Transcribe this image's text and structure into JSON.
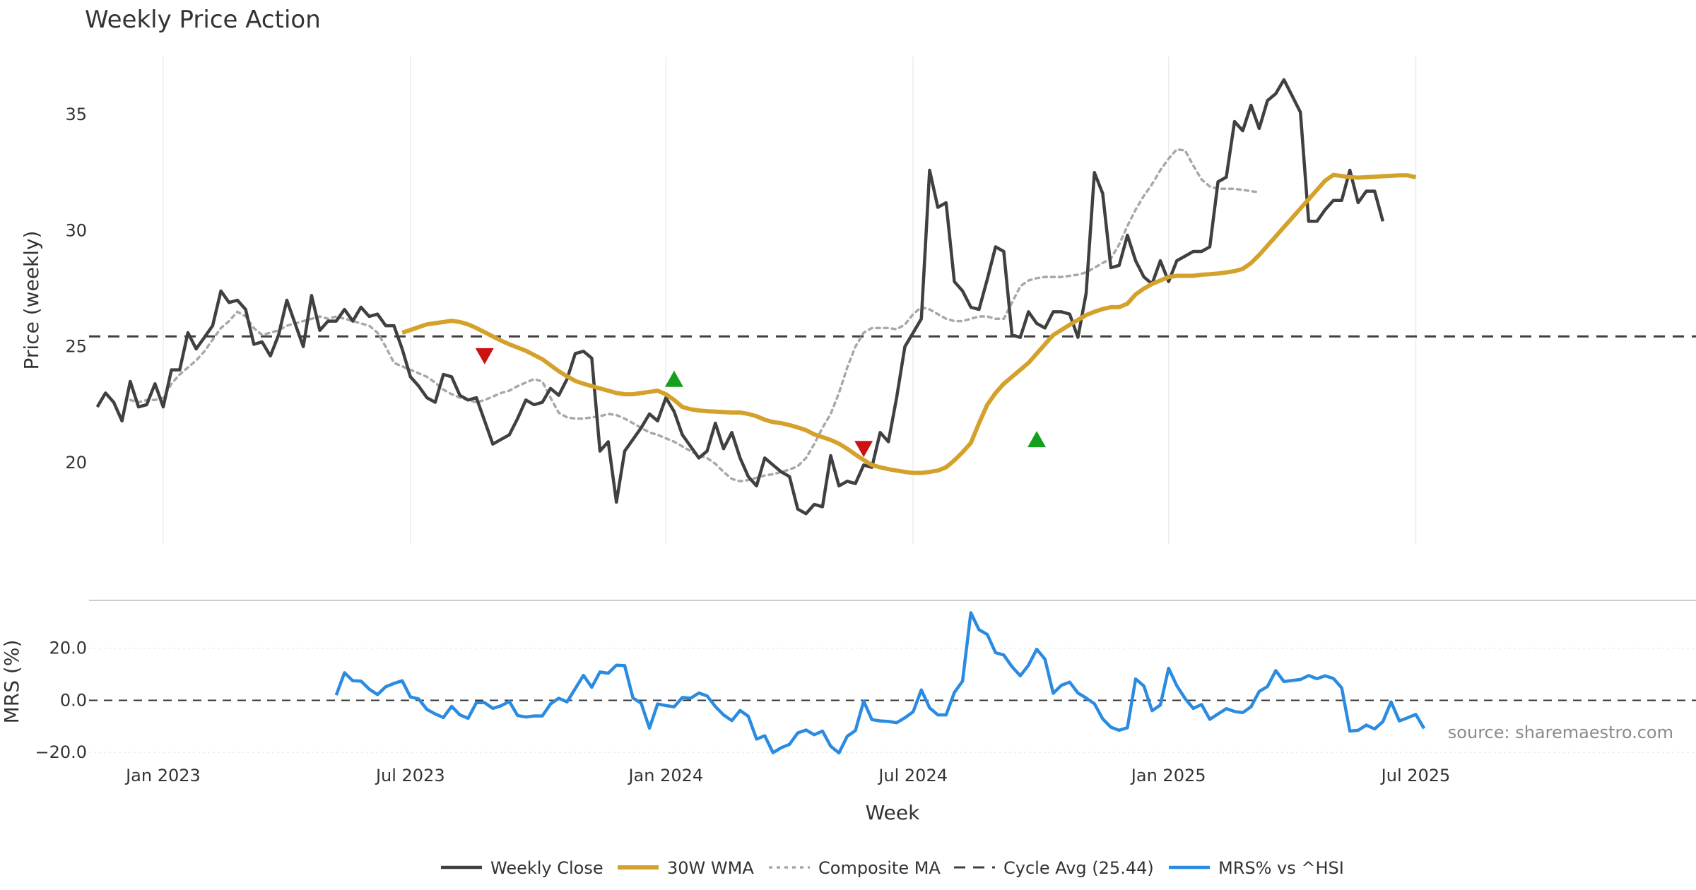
{
  "colors": {
    "close": "#404040",
    "wma": "#d4a12a",
    "composite": "#a8a8a8",
    "cycle": "#404040",
    "mrs": "#2b8be0",
    "up_marker": "#14a01e",
    "down_marker": "#cc1111",
    "grid": "#ececec"
  },
  "chart_data": {
    "type": "line",
    "title": "Weekly Price Action",
    "ylabel": "Price (weekly)",
    "xlabel": "Week",
    "source": "source: sharemaestro.com",
    "ylim": [
      16.5,
      37.5
    ],
    "yticks": [
      20,
      25,
      30,
      35
    ],
    "x_range": [
      -9,
      186
    ],
    "x_tick_positions": [
      0,
      30,
      61,
      91,
      122,
      152
    ],
    "x_tick_labels": [
      "Jan 2023",
      "Jul 2023",
      "Jan 2024",
      "Jul 2024",
      "Jan 2025",
      "Jul 2025"
    ],
    "cycle_avg": 25.44,
    "series": [
      {
        "name": "Weekly Close",
        "start": -8,
        "values": [
          22.4,
          23.0,
          22.6,
          21.8,
          23.5,
          22.4,
          22.5,
          23.4,
          22.4,
          24.0,
          24.0,
          25.6,
          24.9,
          25.4,
          25.9,
          27.4,
          26.9,
          27.0,
          26.6,
          25.1,
          25.2,
          24.6,
          25.5,
          27.0,
          26.0,
          25.0,
          27.2,
          25.7,
          26.1,
          26.1,
          26.6,
          26.1,
          26.7,
          26.3,
          26.4,
          25.9,
          25.9,
          24.9,
          23.7,
          23.3,
          22.8,
          22.6,
          23.8,
          23.7,
          22.9,
          22.7,
          22.8,
          21.8,
          20.8,
          21.0,
          21.2,
          21.9,
          22.7,
          22.5,
          22.6,
          23.2,
          22.9,
          23.6,
          24.7,
          24.8,
          24.5,
          20.5,
          20.9,
          18.3,
          20.5,
          21.0,
          21.5,
          22.1,
          21.8,
          22.8,
          22.2,
          21.2,
          20.7,
          20.2,
          20.5,
          21.7,
          20.6,
          21.3,
          20.2,
          19.4,
          19.0,
          20.2,
          19.9,
          19.6,
          19.4,
          18.0,
          17.8,
          18.2,
          18.1,
          20.3,
          19.0,
          19.2,
          19.1,
          19.9,
          19.8,
          21.3,
          20.9,
          22.8,
          25.0,
          25.6,
          26.2,
          32.6,
          31.0,
          31.2,
          27.8,
          27.4,
          26.7,
          26.6,
          27.9,
          29.3,
          29.1,
          25.5,
          25.4,
          26.5,
          26.0,
          25.8,
          26.5,
          26.5,
          26.4,
          25.4,
          27.3,
          32.5,
          31.6,
          28.4,
          28.5,
          29.8,
          28.7,
          28.0,
          27.7,
          28.7,
          27.8,
          28.7,
          28.9,
          29.1,
          29.1,
          29.3,
          32.1,
          32.3,
          34.7,
          34.3,
          35.4,
          34.4,
          35.6,
          35.9,
          36.5,
          35.8,
          35.1,
          30.4,
          30.4,
          30.9,
          31.3,
          31.3,
          32.6,
          31.2,
          31.7,
          31.7,
          30.4
        ]
      },
      {
        "name": "30W WMA",
        "start": 29,
        "values": [
          25.6,
          25.72,
          25.84,
          25.96,
          26.01,
          26.06,
          26.11,
          26.06,
          25.96,
          25.8,
          25.62,
          25.44,
          25.26,
          25.1,
          24.96,
          24.82,
          24.64,
          24.46,
          24.2,
          23.94,
          23.72,
          23.52,
          23.4,
          23.3,
          23.2,
          23.1,
          23.0,
          22.95,
          22.95,
          23.0,
          23.05,
          23.1,
          22.95,
          22.7,
          22.4,
          22.3,
          22.25,
          22.22,
          22.2,
          22.18,
          22.16,
          22.16,
          22.1,
          22.0,
          21.85,
          21.75,
          21.7,
          21.62,
          21.52,
          21.4,
          21.22,
          21.1,
          20.98,
          20.82,
          20.6,
          20.35,
          20.12,
          19.9,
          19.8,
          19.72,
          19.66,
          19.6,
          19.56,
          19.56,
          19.6,
          19.66,
          19.8,
          20.1,
          20.45,
          20.85,
          21.7,
          22.5,
          23.0,
          23.4,
          23.7,
          24.0,
          24.3,
          24.7,
          25.1,
          25.5,
          25.72,
          25.94,
          26.15,
          26.36,
          26.5,
          26.62,
          26.7,
          26.7,
          26.85,
          27.25,
          27.5,
          27.7,
          27.85,
          28.0,
          28.05,
          28.05,
          28.05,
          28.1,
          28.12,
          28.15,
          28.2,
          28.25,
          28.35,
          28.6,
          28.95,
          29.35,
          29.75,
          30.15,
          30.55,
          30.95,
          31.35,
          31.75,
          32.15,
          32.4,
          32.35,
          32.3,
          32.28,
          32.3,
          32.32,
          32.34,
          32.36,
          32.38,
          32.38,
          32.3
        ]
      },
      {
        "name": "Composite MA",
        "start": -4,
        "values": [
          22.7,
          22.6,
          22.7,
          22.7,
          22.8,
          23.4,
          23.8,
          24.1,
          24.4,
          24.8,
          25.3,
          25.8,
          26.1,
          26.5,
          26.3,
          25.8,
          25.5,
          25.6,
          25.7,
          25.9,
          26.0,
          26.1,
          26.2,
          26.3,
          26.2,
          26.3,
          26.2,
          26.1,
          26.0,
          25.9,
          25.6,
          25.0,
          24.3,
          24.15,
          24.0,
          23.85,
          23.7,
          23.45,
          23.15,
          22.95,
          22.8,
          22.7,
          22.6,
          22.7,
          22.85,
          23.0,
          23.1,
          23.3,
          23.45,
          23.6,
          23.5,
          22.8,
          22.15,
          21.95,
          21.9,
          21.9,
          21.95,
          22.0,
          22.1,
          22.05,
          21.9,
          21.7,
          21.5,
          21.3,
          21.2,
          21.05,
          20.9,
          20.7,
          20.5,
          20.3,
          20.2,
          19.95,
          19.6,
          19.3,
          19.2,
          19.25,
          19.35,
          19.45,
          19.5,
          19.6,
          19.7,
          19.85,
          20.2,
          20.8,
          21.5,
          22.1,
          23.0,
          24.1,
          25.0,
          25.6,
          25.8,
          25.8,
          25.8,
          25.75,
          25.95,
          26.4,
          26.7,
          26.6,
          26.4,
          26.2,
          26.1,
          26.1,
          26.2,
          26.3,
          26.3,
          26.2,
          26.2,
          26.9,
          27.6,
          27.85,
          27.95,
          28.0,
          28.0,
          28.0,
          28.05,
          28.1,
          28.2,
          28.4,
          28.6,
          28.8,
          29.4,
          30.2,
          30.9,
          31.5,
          32.0,
          32.6,
          33.1,
          33.5,
          33.45,
          32.8,
          32.2,
          31.9,
          31.8,
          31.8,
          31.8,
          31.75,
          31.7,
          31.65
        ]
      },
      {
        "name": "MRS% vs ^HSI",
        "start": 21,
        "values": [
          2,
          10.6,
          7.5,
          7.4,
          4.3,
          2.2,
          5.2,
          6.5,
          7.5,
          1.3,
          0.5,
          -3.5,
          -5.2,
          -6.6,
          -2.3,
          -5.6,
          -6.9,
          -0.9,
          -0.9,
          -3.1,
          -2.1,
          -0.4,
          -5.8,
          -6.4,
          -6.0,
          -6.0,
          -1.4,
          0.8,
          -0.6,
          4.5,
          9.6,
          5.0,
          10.9,
          10.4,
          13.5,
          13.3,
          0.9,
          -1.1,
          -10.7,
          -1.4,
          -2.0,
          -2.5,
          1.1,
          0.8,
          2.8,
          1.7,
          -2.4,
          -5.6,
          -7.8,
          -3.9,
          -6.1,
          -14.9,
          -13.6,
          -20.1,
          -18.2,
          -16.9,
          -12.5,
          -11.4,
          -13.2,
          -11.8,
          -17.6,
          -20.2,
          -13.8,
          -11.6,
          -0.3,
          -7.4,
          -7.9,
          -8.1,
          -8.6,
          -6.7,
          -4.4,
          4.0,
          -2.9,
          -5.6,
          -5.6,
          3.0,
          7.4,
          33.6,
          27.1,
          25.3,
          18.3,
          17.4,
          12.9,
          9.4,
          13.5,
          19.6,
          15.8,
          2.7,
          5.8,
          7.0,
          2.8,
          0.9,
          -1.3,
          -7.1,
          -10.3,
          -11.5,
          -10.5,
          8.2,
          5.5,
          -4.0,
          -1.8,
          12.3,
          5.6,
          0.7,
          -3.1,
          -1.6,
          -7.3,
          -5.2,
          -3.2,
          -4.3,
          -4.7,
          -2.5,
          3.4,
          5.3,
          11.4,
          7.2,
          7.6,
          8.0,
          9.5,
          8.3,
          9.4,
          8.4,
          4.8,
          -11.8,
          -11.5,
          -9.5,
          -11.0,
          -8.2,
          -0.6,
          -7.9,
          -6.7,
          -5.4,
          -10.8
        ]
      }
    ],
    "signals": [
      {
        "type": "down",
        "x": 39,
        "y": 24.6
      },
      {
        "type": "up",
        "x": 62,
        "y": 23.6
      },
      {
        "type": "down",
        "x": 85,
        "y": 20.6
      },
      {
        "type": "up",
        "x": 106,
        "y": 21.0
      }
    ],
    "mrs_panel": {
      "ylabel": "MRS (%)",
      "ylim": [
        -24,
        37
      ],
      "yticks": [
        20,
        0,
        -20
      ],
      "ytick_labels": [
        "20.0",
        "0.0",
        "−20.0"
      ]
    },
    "legend": [
      {
        "label": "Weekly Close",
        "style": "solid-dark"
      },
      {
        "label": "30W WMA",
        "style": "solid-gold"
      },
      {
        "label": "Composite MA",
        "style": "dotted-gray"
      },
      {
        "label": "Cycle Avg (25.44)",
        "style": "dashed-dark"
      },
      {
        "label": "MRS% vs ^HSI",
        "style": "solid-blue"
      }
    ]
  }
}
